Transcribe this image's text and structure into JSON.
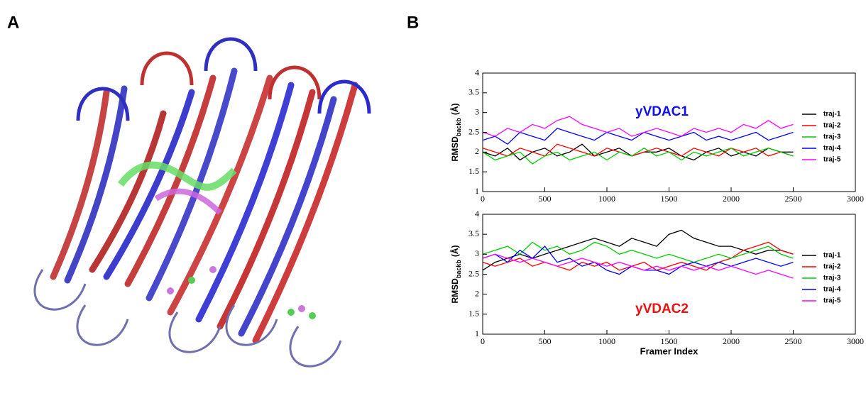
{
  "panel_labels": [
    "A",
    "B"
  ],
  "chart_data": [
    {
      "type": "line",
      "annotation": "yVDAC1",
      "annotation_color": "#1010ee",
      "y_label": {
        "main": "RMSD",
        "sub": "backb",
        "unit": "(Å)"
      },
      "xlim": [
        0,
        3000
      ],
      "xticks": [
        0,
        500,
        1000,
        1500,
        2000,
        2500,
        3000
      ],
      "ylim": [
        1,
        4
      ],
      "yticks": [
        1,
        1.5,
        2,
        2.5,
        3,
        3.5,
        4
      ],
      "x": [
        0,
        100,
        200,
        300,
        400,
        500,
        600,
        700,
        800,
        900,
        1000,
        1100,
        1200,
        1300,
        1400,
        1500,
        1600,
        1700,
        1800,
        1900,
        2000,
        2100,
        2200,
        2300,
        2400,
        2500
      ],
      "series": [
        {
          "name": "traj-1",
          "color": "#000000",
          "values": [
            2.0,
            1.9,
            2.1,
            1.8,
            2.0,
            2.1,
            1.9,
            2.0,
            2.2,
            1.9,
            2.0,
            2.1,
            1.9,
            2.0,
            2.0,
            2.1,
            1.9,
            1.8,
            2.0,
            2.1,
            1.9,
            2.0,
            1.9,
            2.1,
            2.0,
            2.0
          ]
        },
        {
          "name": "traj-2",
          "color": "#ff0000",
          "values": [
            2.1,
            2.0,
            1.9,
            2.1,
            2.0,
            1.9,
            2.2,
            2.1,
            2.0,
            1.9,
            2.1,
            2.0,
            1.9,
            2.0,
            2.1,
            2.0,
            1.9,
            2.1,
            2.0,
            1.9,
            2.1,
            2.0,
            2.1,
            1.9,
            2.0,
            1.9
          ]
        },
        {
          "name": "traj-3",
          "color": "#00cc00",
          "values": [
            2.0,
            1.8,
            1.9,
            2.0,
            1.7,
            1.9,
            2.0,
            1.8,
            1.9,
            2.0,
            1.8,
            2.0,
            1.9,
            2.1,
            1.9,
            2.0,
            1.8,
            2.0,
            1.9,
            2.0,
            2.1,
            1.9,
            2.0,
            2.1,
            2.0,
            1.9
          ]
        },
        {
          "name": "traj-4",
          "color": "#0000ff",
          "values": [
            2.3,
            2.4,
            2.2,
            2.5,
            2.4,
            2.3,
            2.6,
            2.5,
            2.4,
            2.3,
            2.5,
            2.4,
            2.3,
            2.5,
            2.4,
            2.3,
            2.4,
            2.5,
            2.3,
            2.4,
            2.3,
            2.4,
            2.5,
            2.3,
            2.4,
            2.5
          ]
        },
        {
          "name": "traj-5",
          "color": "#ff00ff",
          "values": [
            2.5,
            2.4,
            2.6,
            2.5,
            2.7,
            2.6,
            2.8,
            2.9,
            2.7,
            2.6,
            2.5,
            2.6,
            2.4,
            2.5,
            2.6,
            2.5,
            2.4,
            2.6,
            2.5,
            2.6,
            2.5,
            2.7,
            2.6,
            2.8,
            2.6,
            2.7
          ]
        }
      ]
    },
    {
      "type": "line",
      "annotation": "yVDAC2",
      "annotation_color": "#ee1010",
      "x_label": "Framer Index",
      "y_label": {
        "main": "RMSD",
        "sub": "backb",
        "unit": "(Å)"
      },
      "xlim": [
        0,
        3000
      ],
      "xticks": [
        0,
        500,
        1000,
        1500,
        2000,
        2500,
        3000
      ],
      "ylim": [
        1,
        4
      ],
      "yticks": [
        1,
        1.5,
        2,
        2.5,
        3,
        3.5,
        4
      ],
      "x": [
        0,
        100,
        200,
        300,
        400,
        500,
        600,
        700,
        800,
        900,
        1000,
        1100,
        1200,
        1300,
        1400,
        1500,
        1600,
        1700,
        1800,
        1900,
        2000,
        2100,
        2200,
        2300,
        2400,
        2500
      ],
      "series": [
        {
          "name": "traj-1",
          "color": "#000000",
          "values": [
            2.6,
            2.8,
            2.9,
            3.0,
            2.9,
            3.0,
            3.1,
            3.2,
            3.3,
            3.4,
            3.3,
            3.2,
            3.4,
            3.3,
            3.2,
            3.5,
            3.6,
            3.4,
            3.3,
            3.2,
            3.2,
            3.1,
            3.0,
            3.1,
            3.1,
            3.0
          ]
        },
        {
          "name": "traj-2",
          "color": "#ff0000",
          "values": [
            2.8,
            2.7,
            2.8,
            2.9,
            2.7,
            2.8,
            2.7,
            2.6,
            2.8,
            2.7,
            2.8,
            2.6,
            2.7,
            2.8,
            2.6,
            2.7,
            2.8,
            2.7,
            2.6,
            2.8,
            2.9,
            3.1,
            3.2,
            3.3,
            3.1,
            3.0
          ]
        },
        {
          "name": "traj-3",
          "color": "#00cc00",
          "values": [
            3.0,
            3.1,
            3.2,
            3.0,
            3.3,
            3.1,
            3.2,
            3.0,
            3.1,
            3.3,
            3.2,
            3.0,
            3.1,
            3.0,
            2.9,
            3.0,
            2.9,
            2.8,
            2.9,
            3.0,
            2.9,
            3.0,
            3.1,
            3.2,
            3.0,
            2.9
          ]
        },
        {
          "name": "traj-4",
          "color": "#0000ff",
          "values": [
            2.9,
            3.0,
            2.8,
            3.1,
            2.9,
            3.2,
            2.8,
            2.9,
            2.7,
            2.8,
            2.6,
            2.5,
            2.7,
            2.6,
            2.6,
            2.5,
            2.7,
            2.8,
            2.7,
            2.8,
            2.7,
            2.8,
            2.9,
            2.8,
            2.7,
            2.8
          ]
        },
        {
          "name": "traj-5",
          "color": "#ff00ff",
          "values": [
            2.9,
            3.0,
            2.9,
            2.8,
            2.9,
            2.8,
            2.7,
            2.8,
            2.9,
            2.8,
            2.7,
            2.8,
            2.7,
            2.6,
            2.7,
            2.6,
            2.7,
            2.6,
            2.7,
            2.6,
            2.7,
            2.6,
            2.5,
            2.6,
            2.5,
            2.4
          ]
        }
      ]
    }
  ]
}
